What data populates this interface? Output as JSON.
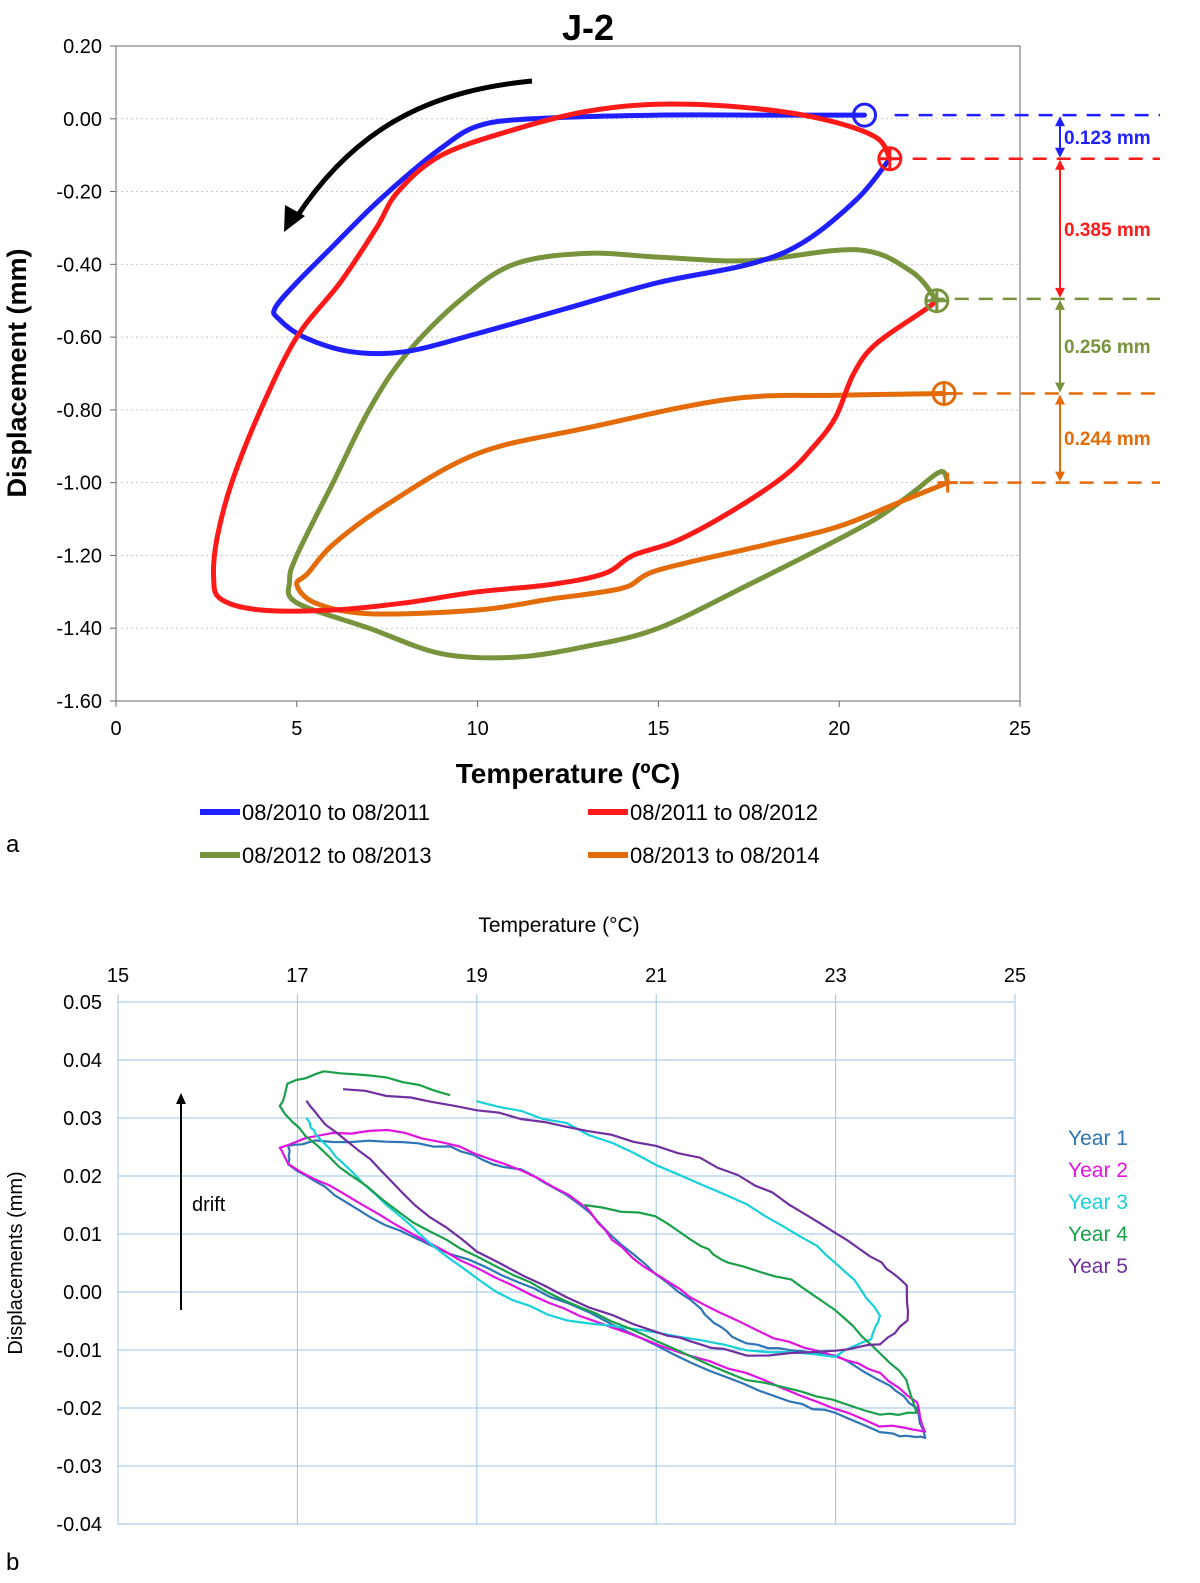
{
  "panel_labels": {
    "a": "a",
    "b": "b"
  },
  "chart_data": [
    {
      "type": "line",
      "panel": "a",
      "title": "J-2",
      "xlabel": "Temperature (ºC)",
      "ylabel": "Displacement (mm)",
      "xlim": [
        0,
        25
      ],
      "ylim": [
        -1.6,
        0.2
      ],
      "xticks": [
        "0",
        "5",
        "10",
        "15",
        "20",
        "25"
      ],
      "yticks": [
        "0.20",
        "0.00",
        "-0.20",
        "-0.40",
        "-0.60",
        "-0.80",
        "-1.00",
        "-1.20",
        "-1.40",
        "-1.60"
      ],
      "grid": "horizontal dotted",
      "legend_position": "bottom",
      "series": [
        {
          "name": "08/2010 to 08/2011",
          "color": "#1f1fff",
          "points": [
            [
              21.4,
              -0.11
            ],
            [
              20.5,
              -0.22
            ],
            [
              19.0,
              -0.34
            ],
            [
              17.5,
              -0.4
            ],
            [
              15.0,
              -0.45
            ],
            [
              12.5,
              -0.52
            ],
            [
              10.0,
              -0.59
            ],
            [
              8.0,
              -0.64
            ],
            [
              6.5,
              -0.64
            ],
            [
              5.2,
              -0.6
            ],
            [
              4.5,
              -0.55
            ],
            [
              4.4,
              -0.52
            ],
            [
              5.0,
              -0.45
            ],
            [
              6.0,
              -0.35
            ],
            [
              7.0,
              -0.25
            ],
            [
              8.0,
              -0.16
            ],
            [
              9.0,
              -0.08
            ],
            [
              10.0,
              -0.02
            ],
            [
              11.5,
              0.0
            ],
            [
              15.0,
              0.01
            ],
            [
              18.0,
              0.01
            ],
            [
              20.7,
              0.01
            ]
          ]
        },
        {
          "name": "08/2011 to 08/2012",
          "color": "#ff1a1a",
          "points": [
            [
              22.7,
              -0.5
            ],
            [
              22.3,
              -0.53
            ],
            [
              21.0,
              -0.62
            ],
            [
              20.4,
              -0.7
            ],
            [
              19.9,
              -0.82
            ],
            [
              19.3,
              -0.9
            ],
            [
              18.5,
              -0.98
            ],
            [
              17.0,
              -1.08
            ],
            [
              15.5,
              -1.16
            ],
            [
              14.3,
              -1.2
            ],
            [
              13.5,
              -1.25
            ],
            [
              12.0,
              -1.28
            ],
            [
              10.0,
              -1.3
            ],
            [
              8.0,
              -1.33
            ],
            [
              6.0,
              -1.35
            ],
            [
              4.0,
              -1.35
            ],
            [
              2.9,
              -1.32
            ],
            [
              2.7,
              -1.26
            ],
            [
              2.8,
              -1.15
            ],
            [
              3.2,
              -1.0
            ],
            [
              4.0,
              -0.8
            ],
            [
              5.0,
              -0.6
            ],
            [
              6.2,
              -0.45
            ],
            [
              7.2,
              -0.3
            ],
            [
              7.8,
              -0.2
            ],
            [
              9.0,
              -0.1
            ],
            [
              11.0,
              -0.03
            ],
            [
              13.0,
              0.02
            ],
            [
              15.0,
              0.04
            ],
            [
              17.5,
              0.03
            ],
            [
              19.5,
              0.0
            ],
            [
              21.0,
              -0.05
            ],
            [
              21.4,
              -0.11
            ]
          ]
        },
        {
          "name": "08/2012 to 08/2013",
          "color": "#77933c",
          "points": [
            [
              23.0,
              -1.0
            ],
            [
              22.8,
              -0.97
            ],
            [
              22.0,
              -1.03
            ],
            [
              21.0,
              -1.1
            ],
            [
              19.5,
              -1.18
            ],
            [
              17.5,
              -1.28
            ],
            [
              15.0,
              -1.4
            ],
            [
              13.0,
              -1.45
            ],
            [
              11.0,
              -1.48
            ],
            [
              9.0,
              -1.47
            ],
            [
              7.0,
              -1.4
            ],
            [
              5.0,
              -1.33
            ],
            [
              4.8,
              -1.27
            ],
            [
              5.0,
              -1.2
            ],
            [
              6.0,
              -1.0
            ],
            [
              7.0,
              -0.8
            ],
            [
              8.0,
              -0.65
            ],
            [
              9.5,
              -0.5
            ],
            [
              11.0,
              -0.4
            ],
            [
              13.0,
              -0.37
            ],
            [
              15.0,
              -0.38
            ],
            [
              17.5,
              -0.39
            ],
            [
              20.5,
              -0.36
            ],
            [
              22.0,
              -0.42
            ],
            [
              22.7,
              -0.5
            ]
          ]
        },
        {
          "name": "08/2013 to 08/2014",
          "color": "#e36c09",
          "points": [
            [
              23.0,
              -1.0
            ],
            [
              22.0,
              -1.04
            ],
            [
              20.0,
              -1.12
            ],
            [
              18.0,
              -1.17
            ],
            [
              15.0,
              -1.24
            ],
            [
              14.0,
              -1.29
            ],
            [
              12.0,
              -1.32
            ],
            [
              10.0,
              -1.35
            ],
            [
              7.0,
              -1.36
            ],
            [
              5.5,
              -1.33
            ],
            [
              5.0,
              -1.28
            ],
            [
              5.3,
              -1.25
            ],
            [
              6.0,
              -1.17
            ],
            [
              7.5,
              -1.06
            ],
            [
              10.0,
              -0.92
            ],
            [
              13.0,
              -0.85
            ],
            [
              17.0,
              -0.77
            ],
            [
              20.0,
              -0.76
            ],
            [
              22.9,
              -0.755
            ]
          ]
        }
      ],
      "markers": [
        {
          "shape": "circle",
          "x": 20.7,
          "y": 0.01,
          "color": "#1f1fff"
        },
        {
          "shape": "circle-plus",
          "x": 21.4,
          "y": -0.11,
          "color": "#ff1a1a"
        },
        {
          "shape": "circle-plus",
          "x": 22.7,
          "y": -0.5,
          "color": "#77933c"
        },
        {
          "shape": "circle-plus",
          "x": 22.9,
          "y": -0.755,
          "color": "#e36c09"
        },
        {
          "shape": "plus",
          "x": 23.0,
          "y": -1.0,
          "color": "#e36c09"
        }
      ],
      "drift_annotations": [
        {
          "label": "0.123 mm",
          "from": 0.01,
          "to": -0.11,
          "color": "#1f1fff"
        },
        {
          "label": "0.385 mm",
          "from": -0.11,
          "to": -0.495,
          "color": "#ff1a1a"
        },
        {
          "label": "0.256 mm",
          "from": -0.495,
          "to": -0.755,
          "color": "#77933c"
        },
        {
          "label": "0.244 mm",
          "from": -0.755,
          "to": -1.0,
          "color": "#e36c09"
        }
      ]
    },
    {
      "type": "line",
      "panel": "b",
      "title": "",
      "xlabel": "Temperature (°C)",
      "ylabel": "Displacements (mm)",
      "xlim": [
        15,
        25
      ],
      "ylim": [
        -0.04,
        0.05
      ],
      "xticks": [
        "15",
        "17",
        "19",
        "21",
        "23",
        "25"
      ],
      "yticks": [
        "0.05",
        "0.04",
        "0.03",
        "0.02",
        "0.01",
        "0.00",
        "-0.01",
        "-0.02",
        "-0.03",
        "-0.04"
      ],
      "x_axis_position": "top",
      "grid": "horizontal and vertical",
      "legend_position": "right",
      "annotation": "drift",
      "series": [
        {
          "name": "Year 1",
          "color": "#2e75b6",
          "points": [
            [
              19.2,
              0.022
            ],
            [
              18.7,
              0.025
            ],
            [
              18.0,
              0.026
            ],
            [
              17.2,
              0.026
            ],
            [
              16.9,
              0.025
            ],
            [
              16.9,
              0.022
            ],
            [
              17.3,
              0.018
            ],
            [
              17.8,
              0.013
            ],
            [
              18.5,
              0.008
            ],
            [
              19.3,
              0.003
            ],
            [
              20.0,
              -0.002
            ],
            [
              21.0,
              -0.009
            ],
            [
              21.8,
              -0.015
            ],
            [
              22.5,
              -0.019
            ],
            [
              23.0,
              -0.021
            ],
            [
              23.5,
              -0.024
            ],
            [
              23.8,
              -0.025
            ],
            [
              24.0,
              -0.025
            ],
            [
              23.9,
              -0.02
            ],
            [
              23.6,
              -0.016
            ],
            [
              23.0,
              -0.011
            ],
            [
              22.5,
              -0.01
            ],
            [
              22.0,
              -0.009
            ],
            [
              21.7,
              -0.006
            ],
            [
              21.5,
              -0.003
            ],
            [
              21.0,
              0.003
            ],
            [
              20.5,
              0.01
            ],
            [
              20.0,
              0.017
            ],
            [
              19.5,
              0.021
            ],
            [
              19.2,
              0.022
            ]
          ]
        },
        {
          "name": "Year 2",
          "color": "#e014e0",
          "points": [
            [
              20.2,
              0.015
            ],
            [
              19.5,
              0.021
            ],
            [
              18.8,
              0.025
            ],
            [
              18.0,
              0.028
            ],
            [
              17.2,
              0.027
            ],
            [
              16.8,
              0.025
            ],
            [
              16.9,
              0.022
            ],
            [
              17.5,
              0.017
            ],
            [
              18.3,
              0.01
            ],
            [
              19.0,
              0.004
            ],
            [
              19.8,
              -0.002
            ],
            [
              20.5,
              -0.006
            ],
            [
              21.2,
              -0.01
            ],
            [
              22.0,
              -0.014
            ],
            [
              22.8,
              -0.019
            ],
            [
              23.5,
              -0.023
            ],
            [
              24.0,
              -0.024
            ],
            [
              23.9,
              -0.019
            ],
            [
              23.5,
              -0.014
            ],
            [
              23.0,
              -0.011
            ],
            [
              22.3,
              -0.008
            ],
            [
              21.5,
              -0.002
            ],
            [
              21.0,
              0.003
            ],
            [
              20.5,
              0.009
            ],
            [
              20.2,
              0.015
            ]
          ]
        },
        {
          "name": "Year 3",
          "color": "#17d0d8",
          "points": [
            [
              19.0,
              0.033
            ],
            [
              20.0,
              0.029
            ],
            [
              21.0,
              0.022
            ],
            [
              22.0,
              0.015
            ],
            [
              22.8,
              0.008
            ],
            [
              23.2,
              0.002
            ],
            [
              23.5,
              -0.004
            ],
            [
              23.4,
              -0.008
            ],
            [
              23.0,
              -0.011
            ],
            [
              22.0,
              -0.01
            ],
            [
              21.0,
              -0.007
            ],
            [
              20.0,
              -0.005
            ],
            [
              19.2,
              0.0
            ],
            [
              18.5,
              0.008
            ],
            [
              18.0,
              0.015
            ],
            [
              17.5,
              0.022
            ],
            [
              17.2,
              0.027
            ],
            [
              17.1,
              0.03
            ]
          ]
        },
        {
          "name": "Year 4",
          "color": "#1aa04a",
          "points": [
            [
              18.7,
              0.034
            ],
            [
              18.0,
              0.037
            ],
            [
              17.3,
              0.038
            ],
            [
              16.9,
              0.036
            ],
            [
              16.8,
              0.032
            ],
            [
              17.1,
              0.027
            ],
            [
              17.6,
              0.02
            ],
            [
              18.3,
              0.012
            ],
            [
              19.0,
              0.006
            ],
            [
              19.8,
              0.0
            ],
            [
              20.5,
              -0.005
            ],
            [
              21.2,
              -0.01
            ],
            [
              22.0,
              -0.015
            ],
            [
              22.8,
              -0.018
            ],
            [
              23.5,
              -0.021
            ],
            [
              23.9,
              -0.021
            ],
            [
              23.8,
              -0.015
            ],
            [
              23.4,
              -0.009
            ],
            [
              23.0,
              -0.003
            ],
            [
              22.5,
              0.002
            ],
            [
              21.8,
              0.005
            ],
            [
              21.5,
              0.008
            ],
            [
              21.0,
              0.013
            ],
            [
              20.2,
              0.015
            ]
          ]
        },
        {
          "name": "Year 5",
          "color": "#7030a0",
          "points": [
            [
              17.5,
              0.035
            ],
            [
              18.5,
              0.033
            ],
            [
              19.5,
              0.03
            ],
            [
              20.5,
              0.027
            ],
            [
              21.5,
              0.023
            ],
            [
              22.3,
              0.017
            ],
            [
              23.0,
              0.01
            ],
            [
              23.5,
              0.005
            ],
            [
              23.8,
              0.001
            ],
            [
              23.8,
              -0.005
            ],
            [
              23.5,
              -0.009
            ],
            [
              23.0,
              -0.01
            ],
            [
              22.0,
              -0.011
            ],
            [
              21.5,
              -0.009
            ],
            [
              21.0,
              -0.007
            ],
            [
              20.0,
              -0.001
            ],
            [
              19.0,
              0.007
            ],
            [
              18.3,
              0.015
            ],
            [
              17.8,
              0.023
            ],
            [
              17.3,
              0.029
            ],
            [
              17.1,
              0.033
            ]
          ]
        }
      ]
    }
  ]
}
